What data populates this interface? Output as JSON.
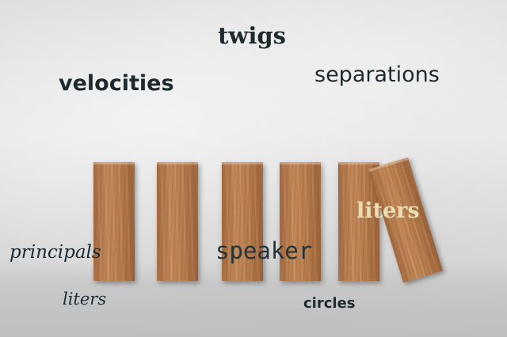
{
  "scene": {
    "description_words": [],
    "blocks_count": 6
  },
  "words": {
    "twigs": "twigs",
    "velocities": "velocities",
    "separations": "separations",
    "liters_top": "liters",
    "principals": "principals",
    "speaker": "speaker",
    "liters_bottom": "liters",
    "circles": "circles"
  },
  "colors": {
    "text_dark": "#1f2a2e",
    "text_light": "#e8ddb4",
    "wood": "#b47a4b"
  }
}
